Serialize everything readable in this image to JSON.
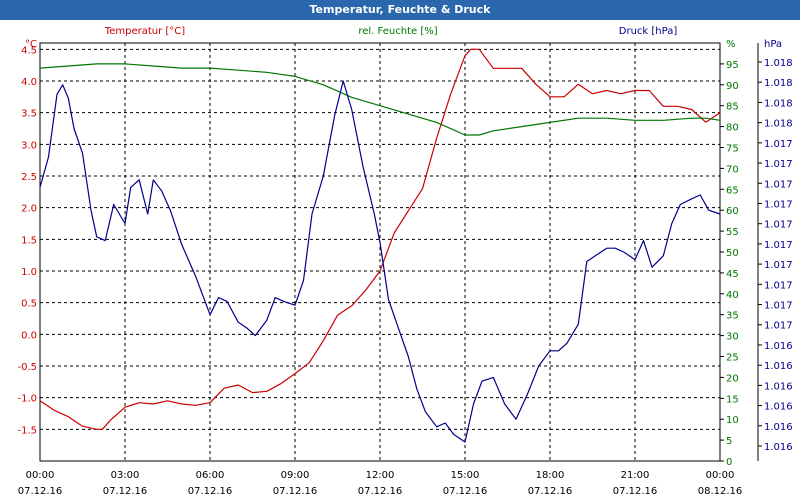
{
  "window": {
    "title": "Temperatur, Feuchte & Druck"
  },
  "colors": {
    "temperature": "#cc0000",
    "humidity": "#007700",
    "pressure": "#00008b",
    "titlebar": "#2a67ad",
    "grid": "#000000"
  },
  "chart_data": {
    "type": "line",
    "title": "Temperatur, Feuchte & Druck",
    "grid": true,
    "x_ticks": [
      {
        "time": "00:00",
        "date": "07.12.16"
      },
      {
        "time": "03:00",
        "date": "07.12.16"
      },
      {
        "time": "06:00",
        "date": "07.12.16"
      },
      {
        "time": "09:00",
        "date": "07.12.16"
      },
      {
        "time": "12:00",
        "date": "07.12.16"
      },
      {
        "time": "15:00",
        "date": "07.12.16"
      },
      {
        "time": "18:00",
        "date": "07.12.16"
      },
      {
        "time": "21:00",
        "date": "07.12.16"
      },
      {
        "time": "00:00",
        "date": "08.12.16"
      }
    ],
    "axes": {
      "temperature": {
        "label": "Temperatur [°C]",
        "unit": "°C",
        "range": [
          -2.0,
          4.6
        ],
        "ticks": [
          "4.5",
          "4.0",
          "3.5",
          "3.0",
          "2.5",
          "2.0",
          "1.5",
          "1.0",
          "0.5",
          "0.0",
          "-0.5",
          "-1.0",
          "-1.5"
        ]
      },
      "humidity": {
        "label": "rel. Feuchte [%]",
        "unit": "%",
        "range": [
          0,
          100
        ],
        "ticks": [
          "95",
          "90",
          "85",
          "80",
          "75",
          "70",
          "65",
          "60",
          "55",
          "50",
          "45",
          "40",
          "35",
          "30",
          "25",
          "20",
          "15",
          "10",
          "5",
          "0"
        ]
      },
      "pressure": {
        "label": "Druck [hPa]",
        "unit": "hPa",
        "range": [
          1016.0,
          1018.2
        ],
        "ticks": [
          "1.018",
          "1.018",
          "1.018",
          "1.018",
          "1.017",
          "1.017",
          "1.017",
          "1.017",
          "1.017",
          "1.017",
          "1.017",
          "1.017",
          "1.017",
          "1.017",
          "1.016",
          "1.016",
          "1.016",
          "1.016",
          "1.016",
          "1.016"
        ]
      }
    },
    "series": [
      {
        "name": "Temperatur [°C]",
        "axis": "temperature",
        "color": "#cc0000",
        "x_hours": [
          0,
          0.5,
          1,
          1.5,
          2,
          2.2,
          2.5,
          3,
          3.5,
          4,
          4.5,
          5,
          5.5,
          6,
          6.5,
          7,
          7.5,
          8,
          8.5,
          9,
          9.5,
          10,
          10.5,
          11,
          11.5,
          12,
          12.5,
          13,
          13.5,
          14,
          14.5,
          15,
          15.2,
          15.5,
          16,
          16.5,
          17,
          17.5,
          18,
          18.5,
          19,
          19.5,
          20,
          20.5,
          21,
          21.5,
          22,
          22.5,
          23,
          23.5,
          24
        ],
        "values": [
          -1.05,
          -1.2,
          -1.3,
          -1.45,
          -1.5,
          -1.5,
          -1.35,
          -1.15,
          -1.08,
          -1.1,
          -1.05,
          -1.1,
          -1.12,
          -1.08,
          -0.85,
          -0.8,
          -0.92,
          -0.9,
          -0.78,
          -0.62,
          -0.45,
          -0.1,
          0.3,
          0.45,
          0.7,
          1.0,
          1.6,
          1.95,
          2.3,
          3.1,
          3.8,
          4.4,
          4.5,
          4.5,
          4.2,
          4.2,
          4.2,
          3.95,
          3.75,
          3.75,
          3.95,
          3.8,
          3.85,
          3.8,
          3.85,
          3.85,
          3.6,
          3.6,
          3.55,
          3.35,
          3.5
        ]
      },
      {
        "name": "rel. Feuchte [%]",
        "axis": "humidity",
        "color": "#007700",
        "x_hours": [
          0,
          1,
          2,
          3,
          4,
          5,
          6,
          7,
          8,
          9,
          10,
          11,
          12,
          13,
          14,
          15,
          15.5,
          16,
          17,
          18,
          19,
          20,
          21,
          22,
          23,
          23.5,
          24
        ],
        "values": [
          94,
          94.5,
          95,
          95,
          94.5,
          94,
          94,
          93.5,
          93,
          92,
          90,
          87,
          85,
          83,
          81,
          78,
          78,
          79,
          80,
          81,
          82,
          82,
          81.5,
          81.5,
          82,
          82,
          81.5
        ]
      },
      {
        "name": "Druck [hPa]",
        "axis": "pressure",
        "color": "#00008b",
        "x_hours": [
          0,
          0.3,
          0.6,
          0.8,
          1.0,
          1.2,
          1.5,
          1.8,
          2.0,
          2.3,
          2.6,
          3.0,
          3.2,
          3.5,
          3.8,
          4.0,
          4.3,
          4.6,
          5.0,
          5.5,
          6.0,
          6.3,
          6.6,
          7.0,
          7.3,
          7.6,
          8.0,
          8.3,
          8.6,
          9.0,
          9.3,
          9.6,
          10.0,
          10.4,
          10.7,
          11.0,
          11.4,
          11.8,
          12.0,
          12.3,
          12.6,
          13.0,
          13.3,
          13.6,
          14.0,
          14.3,
          14.6,
          15.0,
          15.3,
          15.6,
          16.0,
          16.4,
          16.8,
          17.2,
          17.6,
          18.0,
          18.3,
          18.6,
          19.0,
          19.3,
          19.6,
          20.0,
          20.3,
          20.6,
          21.0,
          21.3,
          21.6,
          22.0,
          22.3,
          22.6,
          23.0,
          23.3,
          23.6,
          24.0
        ],
        "values": [
          1017.44,
          1017.6,
          1017.93,
          1017.98,
          1017.91,
          1017.75,
          1017.62,
          1017.32,
          1017.18,
          1017.16,
          1017.35,
          1017.25,
          1017.44,
          1017.48,
          1017.3,
          1017.48,
          1017.42,
          1017.32,
          1017.14,
          1016.97,
          1016.77,
          1016.86,
          1016.84,
          1016.73,
          1016.7,
          1016.66,
          1016.74,
          1016.86,
          1016.84,
          1016.82,
          1016.95,
          1017.3,
          1017.5,
          1017.82,
          1018.0,
          1017.85,
          1017.55,
          1017.3,
          1017.15,
          1016.85,
          1016.72,
          1016.55,
          1016.38,
          1016.26,
          1016.18,
          1016.2,
          1016.14,
          1016.1,
          1016.3,
          1016.42,
          1016.44,
          1016.3,
          1016.22,
          1016.35,
          1016.5,
          1016.58,
          1016.58,
          1016.62,
          1016.72,
          1017.05,
          1017.08,
          1017.12,
          1017.12,
          1017.1,
          1017.06,
          1017.16,
          1017.02,
          1017.08,
          1017.25,
          1017.35,
          1017.38,
          1017.4,
          1017.32,
          1017.3
        ]
      }
    ]
  }
}
